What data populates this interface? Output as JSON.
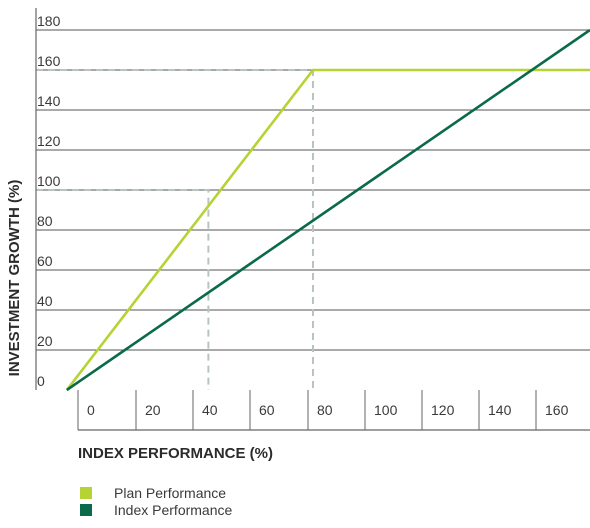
{
  "chart_data": {
    "type": "line",
    "xlabel": "INDEX PERFORMANCE (%)",
    "ylabel": "INVESTMENT GROWTH (%)",
    "xlim": [
      -10,
      170
    ],
    "ylim": [
      0,
      180
    ],
    "x_ticks": [
      "0",
      "20",
      "40",
      "60",
      "80",
      "100",
      "120",
      "140",
      "160"
    ],
    "y_ticks": [
      "0",
      "20",
      "40",
      "60",
      "80",
      "100",
      "120",
      "140",
      "160",
      "180"
    ],
    "grid": "horizontal",
    "legend_position": "bottom-left",
    "series": [
      {
        "name": "Plan Performance",
        "color": "#b5d334",
        "points": [
          [
            0,
            0
          ],
          [
            80,
            160
          ],
          [
            170,
            160
          ]
        ]
      },
      {
        "name": "Index Performance",
        "color": "#0b6a4c",
        "points": [
          [
            0,
            0
          ],
          [
            170,
            180
          ]
        ]
      }
    ],
    "reference_lines": [
      {
        "points": [
          [
            -10,
            100
          ],
          [
            46,
            100
          ],
          [
            46,
            0
          ]
        ]
      },
      {
        "points": [
          [
            -10,
            160
          ],
          [
            80,
            160
          ],
          [
            80,
            0
          ]
        ]
      }
    ]
  }
}
